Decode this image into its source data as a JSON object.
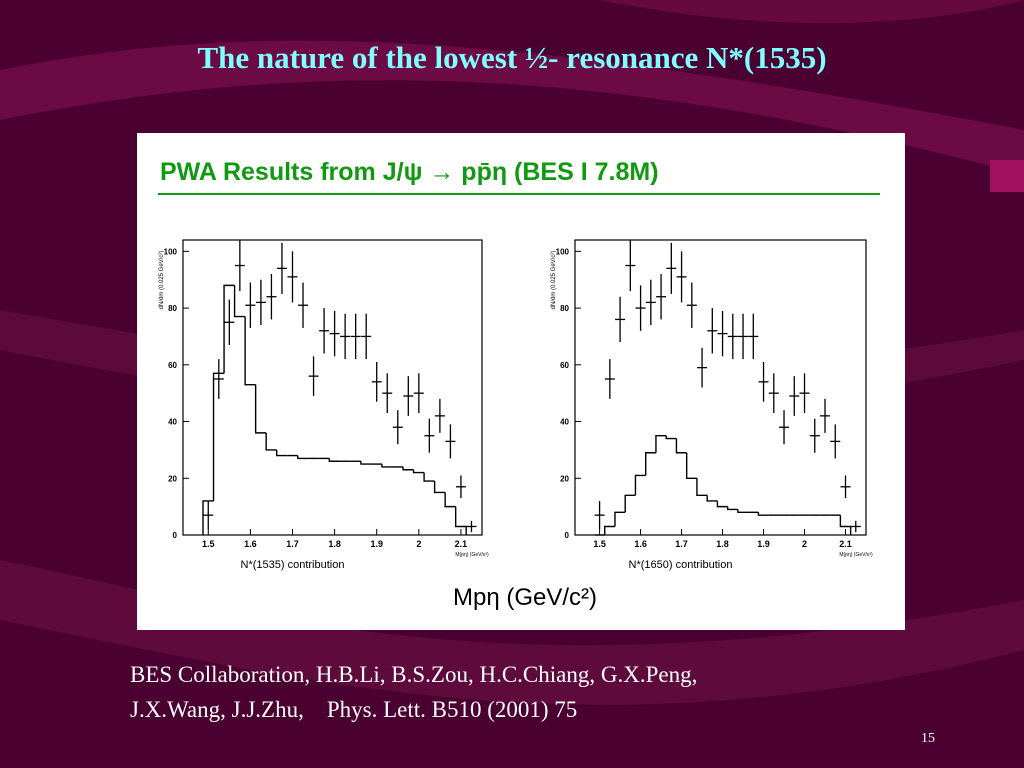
{
  "slide": {
    "title": "The nature of the lowest ½- resonance N*(1535)",
    "citation_line1": "BES Collaboration, H.B.Li, B.S.Zou, H.C.Chiang, G.X.Peng,",
    "citation_line2": "J.X.Wang, J.J.Zhu,    Phys. Lett. B510 (2001) 75",
    "page_number": "15"
  },
  "figure": {
    "heading": "PWA Results from J/ψ → pp̄η (BES I 7.8M)",
    "x_axis_label": "Mpη (GeV/c²)"
  },
  "chart_data": [
    {
      "type": "histogram",
      "xlabel": "N*(1535) contribution",
      "ylabel": "dN/dm (0.025 GeV/c²)",
      "xunit": "M(pη) (GeV/c²)",
      "xlim": [
        1.44,
        2.15
      ],
      "ylim": [
        0,
        104
      ],
      "xticks": [
        {
          "value": 1.5,
          "label": "1.5"
        },
        {
          "value": 1.6,
          "label": "1.6"
        },
        {
          "value": 1.7,
          "label": "1.7"
        },
        {
          "value": 1.8,
          "label": "1.8"
        },
        {
          "value": 1.9,
          "label": "1.9"
        },
        2,
        {
          "value": 2.1,
          "label": "2.1"
        }
      ],
      "yticks": [
        0,
        20,
        40,
        60,
        80,
        100
      ],
      "x": [
        1.5,
        1.525,
        1.55,
        1.575,
        1.6,
        1.625,
        1.65,
        1.675,
        1.7,
        1.725,
        1.75,
        1.775,
        1.8,
        1.825,
        1.85,
        1.875,
        1.9,
        1.925,
        1.95,
        1.975,
        2.0,
        2.025,
        2.05,
        2.075,
        2.1,
        2.125
      ],
      "values": [
        7,
        55,
        75,
        95,
        81,
        82,
        84,
        94,
        91,
        81,
        56,
        72,
        71,
        70,
        70,
        70,
        54,
        50,
        38,
        49,
        50,
        35,
        42,
        33,
        17,
        3
      ],
      "errors": [
        5,
        7,
        8,
        9,
        8,
        8,
        8,
        9,
        9,
        8,
        7,
        8,
        8,
        8,
        8,
        8,
        7,
        7,
        6,
        7,
        7,
        6,
        6,
        6,
        4,
        2
      ],
      "bins": [
        1.4875,
        1.5125,
        1.5375,
        1.5625,
        1.5875,
        1.6125,
        1.6375,
        1.6625,
        1.6875,
        1.7125,
        1.7375,
        1.7625,
        1.7875,
        1.8125,
        1.8375,
        1.8625,
        1.8875,
        1.9125,
        1.9375,
        1.9625,
        1.9875,
        2.0125,
        2.0375,
        2.0625,
        2.0875,
        2.1125
      ],
      "counts": [
        12,
        57,
        88,
        77,
        53,
        36,
        30,
        28,
        28,
        27,
        27,
        27,
        26,
        26,
        26,
        25,
        25,
        24,
        24,
        23,
        22,
        19,
        15,
        10,
        3
      ]
    },
    {
      "type": "histogram",
      "xlabel": "N*(1650) contribution",
      "ylabel": "dN/dm (0.025 GeV/c²)",
      "xunit": "M(pη) (GeV/c²)",
      "xlim": [
        1.44,
        2.15
      ],
      "ylim": [
        0,
        104
      ],
      "xticks": [
        {
          "value": 1.5,
          "label": "1.5"
        },
        {
          "value": 1.6,
          "label": "1.6"
        },
        {
          "value": 1.7,
          "label": "1.7"
        },
        {
          "value": 1.8,
          "label": "1.8"
        },
        {
          "value": 1.9,
          "label": "1.9"
        },
        2,
        {
          "value": 2.1,
          "label": "2.1"
        }
      ],
      "yticks": [
        0,
        20,
        40,
        60,
        80,
        100
      ],
      "x": [
        1.5,
        1.525,
        1.55,
        1.575,
        1.6,
        1.625,
        1.65,
        1.675,
        1.7,
        1.725,
        1.75,
        1.775,
        1.8,
        1.825,
        1.85,
        1.875,
        1.9,
        1.925,
        1.95,
        1.975,
        2.0,
        2.025,
        2.05,
        2.075,
        2.1,
        2.125
      ],
      "values": [
        7,
        55,
        76,
        95,
        80,
        82,
        84,
        94,
        91,
        81,
        59,
        72,
        71,
        70,
        70,
        70,
        54,
        50,
        38,
        49,
        50,
        35,
        42,
        33,
        17,
        3
      ],
      "errors": [
        5,
        7,
        8,
        9,
        8,
        8,
        8,
        9,
        9,
        8,
        7,
        8,
        8,
        8,
        8,
        8,
        7,
        7,
        6,
        7,
        7,
        6,
        6,
        6,
        4,
        2
      ],
      "bins": [
        1.4875,
        1.5125,
        1.5375,
        1.5625,
        1.5875,
        1.6125,
        1.6375,
        1.6625,
        1.6875,
        1.7125,
        1.7375,
        1.7625,
        1.7875,
        1.8125,
        1.8375,
        1.8625,
        1.8875,
        1.9125,
        1.9375,
        1.9625,
        1.9875,
        2.0125,
        2.0375,
        2.0625,
        2.0875,
        2.1125
      ],
      "counts": [
        0,
        3,
        8,
        14,
        21,
        29,
        35,
        34,
        29,
        20,
        14,
        12,
        10,
        9,
        8,
        8,
        7,
        7,
        7,
        7,
        7,
        7,
        7,
        7,
        3
      ]
    }
  ]
}
